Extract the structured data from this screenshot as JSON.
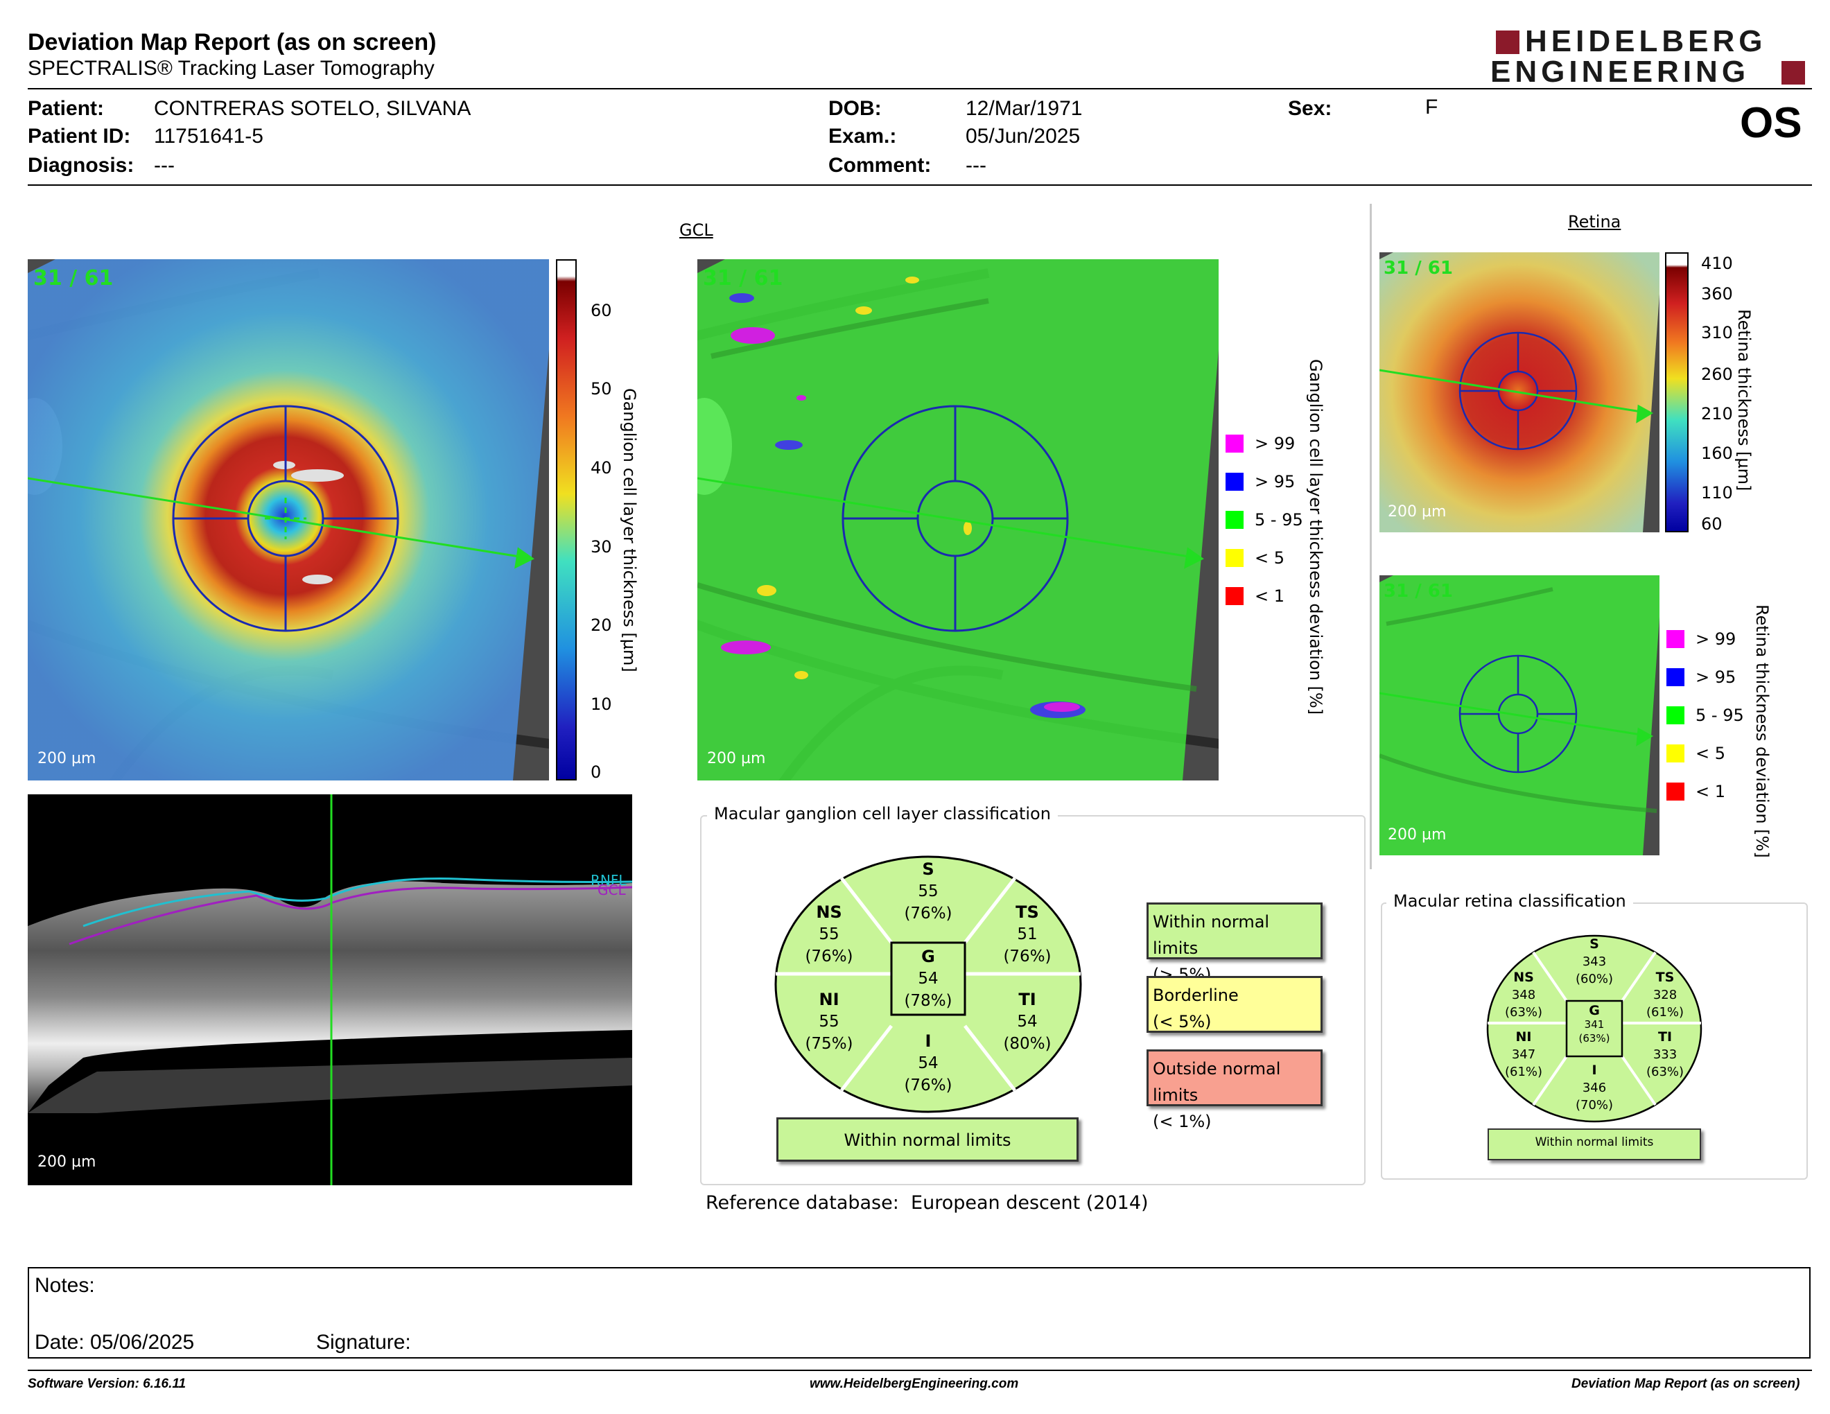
{
  "header": {
    "title": "Deviation Map Report (as on screen)",
    "subtitle": "SPECTRALIS® Tracking Laser Tomography",
    "logo_line1": "HEIDELBERG",
    "logo_line2": "ENGINEERING",
    "eye": "OS"
  },
  "patient": {
    "patient_label": "Patient:",
    "patient_value": "CONTRERAS SOTELO, SILVANA",
    "id_label": "Patient ID:",
    "id_value": "11751641-5",
    "diag_label": "Diagnosis:",
    "diag_value": "---",
    "dob_label": "DOB:",
    "dob_value": "12/Mar/1971",
    "exam_label": "Exam.:",
    "exam_value": "05/Jun/2025",
    "comment_label": "Comment:",
    "comment_value": "---",
    "sex_label": "Sex:",
    "sex_value": "F"
  },
  "gcl": {
    "section_title": "GCL",
    "frame_index": "31 / 61",
    "scale_label": "200 µm",
    "thickness_axis_title": "Ganglion cell layer thickness [µm]",
    "thickness_ticks": [
      "60",
      "50",
      "40",
      "30",
      "20",
      "10",
      "0"
    ],
    "deviation_axis_title": "Ganglion cell layer thickness deviation [%]",
    "deviation_legend": [
      {
        "label": "> 99",
        "color": "#ff00ff"
      },
      {
        "label": "> 95",
        "color": "#0000ff"
      },
      {
        "label": "5 - 95",
        "color": "#00ff00"
      },
      {
        "label": "< 5",
        "color": "#ffff00"
      },
      {
        "label": "< 1",
        "color": "#ff0000"
      }
    ]
  },
  "bscan": {
    "scale_label": "200 µm",
    "layer1": "RNFL",
    "layer2": "GCL"
  },
  "gcl_classification": {
    "title": "Macular ganglion cell layer classification",
    "sectors": {
      "S": {
        "name": "S",
        "value": "55",
        "pct": "(76%)"
      },
      "NS": {
        "name": "NS",
        "value": "55",
        "pct": "(76%)"
      },
      "TS": {
        "name": "TS",
        "value": "51",
        "pct": "(76%)"
      },
      "G": {
        "name": "G",
        "value": "54",
        "pct": "(78%)"
      },
      "NI": {
        "name": "NI",
        "value": "55",
        "pct": "(75%)"
      },
      "TI": {
        "name": "TI",
        "value": "54",
        "pct": "(80%)"
      },
      "I": {
        "name": "I",
        "value": "54",
        "pct": "(76%)"
      }
    },
    "result": "Within normal limits",
    "key": {
      "wnl_1": "Within normal limits",
      "wnl_2": "(> 5%)",
      "bl_1": "Borderline",
      "bl_2": "(< 5%)",
      "onl_1": "Outside normal limits",
      "onl_2": "(< 1%)"
    },
    "colors": {
      "normal": "#c8f598",
      "borderline": "#ffff99",
      "outside": "#f8a090"
    }
  },
  "reference": {
    "label": "Reference database",
    "sep": ":",
    "value": "European descent (2014)"
  },
  "retina": {
    "section_title": "Retina",
    "frame_index": "31 / 61",
    "scale_label": "200 µm",
    "thickness_axis_title": "Retina thickness [µm]",
    "thickness_ticks": [
      "410",
      "360",
      "310",
      "260",
      "210",
      "160",
      "110",
      "60"
    ],
    "deviation_axis_title": "Retina thickness deviation [%]",
    "deviation_legend": [
      {
        "label": "> 99",
        "color": "#ff00ff"
      },
      {
        "label": "> 95",
        "color": "#0000ff"
      },
      {
        "label": "5 - 95",
        "color": "#00ff00"
      },
      {
        "label": "< 5",
        "color": "#ffff00"
      },
      {
        "label": "< 1",
        "color": "#ff0000"
      }
    ]
  },
  "retina_classification": {
    "title": "Macular retina classification",
    "sectors": {
      "S": {
        "name": "S",
        "value": "343",
        "pct": "(60%)"
      },
      "NS": {
        "name": "NS",
        "value": "348",
        "pct": "(63%)"
      },
      "TS": {
        "name": "TS",
        "value": "328",
        "pct": "(61%)"
      },
      "G": {
        "name": "G",
        "value": "341",
        "pct": "(63%)"
      },
      "NI": {
        "name": "NI",
        "value": "347",
        "pct": "(61%)"
      },
      "TI": {
        "name": "TI",
        "value": "333",
        "pct": "(63%)"
      },
      "I": {
        "name": "I",
        "value": "346",
        "pct": "(70%)"
      }
    },
    "result": "Within normal limits"
  },
  "notes": {
    "notes_label": "Notes:",
    "date_label": "Date: 05/06/2025",
    "signature_label": "Signature:"
  },
  "footer": {
    "software": "Software Version: 6.16.11",
    "website": "www.HeidelbergEngineering.com",
    "report_name": "Deviation Map Report (as on screen)"
  }
}
